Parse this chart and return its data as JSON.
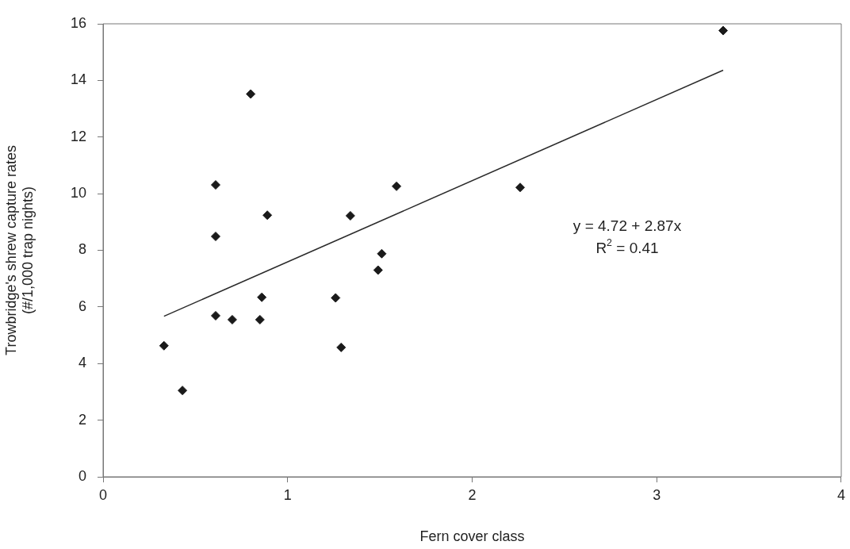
{
  "chart_data": {
    "type": "scatter",
    "xlabel": "Fern cover class",
    "ylabel": "Trowbridge's shrew capture rates\n(#/1,000 trap nights)",
    "xlim": [
      0,
      4
    ],
    "xticks": [
      0,
      1,
      2,
      3,
      4
    ],
    "ylim": [
      0,
      16
    ],
    "yticks": [
      0,
      2,
      4,
      6,
      8,
      10,
      12,
      14,
      16
    ],
    "series": [
      {
        "marker": "diamond",
        "color": "#1a1a1a",
        "x": [
          0.33,
          0.43,
          0.61,
          0.61,
          0.61,
          0.7,
          0.8,
          0.86,
          0.85,
          0.89,
          1.26,
          1.29,
          1.34,
          1.49,
          1.51,
          1.59,
          2.26,
          3.36
        ],
        "values": [
          4.63,
          3.05,
          10.31,
          8.49,
          5.69,
          5.55,
          13.52,
          6.34,
          5.55,
          9.24,
          6.32,
          4.57,
          9.22,
          7.3,
          7.88,
          10.26,
          10.22,
          15.76
        ]
      },
      {
        "type": "line",
        "marker": "none",
        "color": "#2a2a2a",
        "x": [
          0.33,
          3.36
        ],
        "values": [
          5.67,
          14.36
        ]
      }
    ],
    "annotations": [
      "y = 4.72 + 2.87x",
      "R$^{2}$ = 0.41"
    ]
  }
}
